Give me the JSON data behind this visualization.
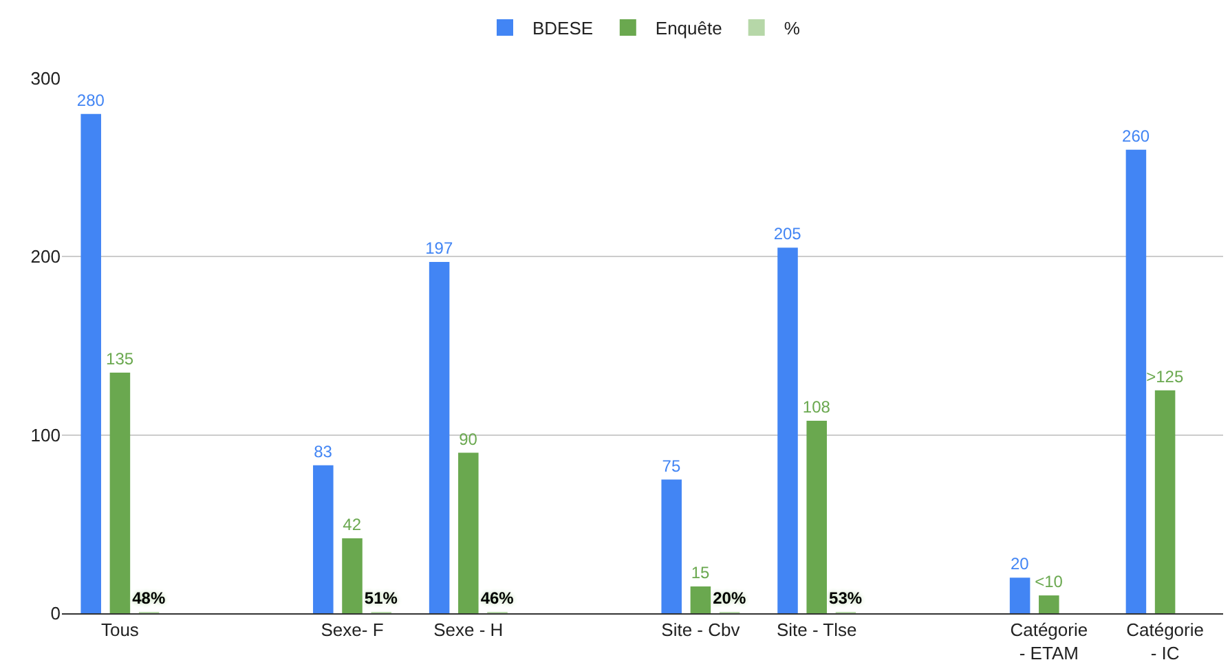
{
  "chart_data": {
    "type": "bar",
    "categories": [
      "Tous",
      null,
      "Sexe- F",
      "Sexe - H",
      null,
      "Site - Cbv",
      "Site - Tlse",
      null,
      "Catégorie - ETAM",
      "Catégorie - IC"
    ],
    "series": [
      {
        "name": "BDESE",
        "color": "#4285f4",
        "values": [
          280,
          null,
          83,
          197,
          null,
          75,
          205,
          null,
          20,
          260
        ],
        "value_labels": [
          "280",
          null,
          "83",
          "197",
          null,
          "75",
          "205",
          null,
          "20",
          "260"
        ]
      },
      {
        "name": "Enquête",
        "color": "#6aa84f",
        "values": [
          135,
          null,
          42,
          90,
          null,
          15,
          108,
          null,
          10,
          125
        ],
        "value_labels": [
          "135",
          null,
          "42",
          "90",
          null,
          "15",
          "108",
          null,
          "<10",
          ">125"
        ]
      },
      {
        "name": "%",
        "color": "#b6d7a8",
        "values": [
          0.48,
          null,
          0.51,
          0.46,
          null,
          0.2,
          0.53,
          null,
          null,
          null
        ],
        "value_labels": [
          "48%",
          null,
          "51%",
          "46%",
          null,
          "20%",
          "53%",
          null,
          null,
          null
        ]
      }
    ],
    "ylim": [
      0,
      300
    ],
    "yticks": [
      0,
      100,
      200,
      300
    ],
    "grid": "y",
    "legend": "top"
  }
}
